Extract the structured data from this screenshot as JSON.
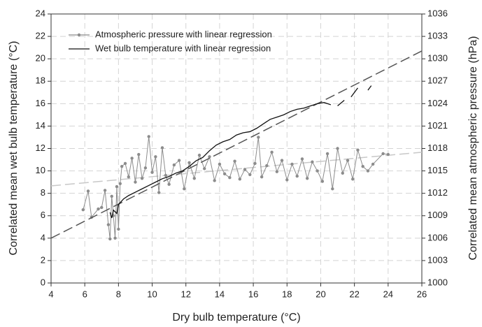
{
  "chart_data": {
    "type": "line",
    "xlabel": "Dry bulb temperature (°C)",
    "ylabel": "Correlated mean wet bulb temperature (°C)",
    "y2label": "Correlated mean atmospheric pressure (hPa)",
    "xlim": [
      4,
      26
    ],
    "xticks": [
      4,
      6,
      8,
      10,
      12,
      14,
      16,
      18,
      20,
      22,
      24,
      26
    ],
    "ylim": [
      0,
      24
    ],
    "yticks": [
      0,
      2,
      4,
      6,
      8,
      10,
      12,
      14,
      16,
      18,
      20,
      22,
      24
    ],
    "y2lim": [
      1000,
      1036
    ],
    "y2ticks": [
      1000,
      1003,
      1006,
      1009,
      1012,
      1015,
      1018,
      1021,
      1024,
      1027,
      1030,
      1033,
      1036
    ],
    "grid": true,
    "legend": "upper left",
    "series": [
      {
        "name": "Atmospheric pressure with linear regression",
        "color": "#8c8c8c",
        "axis": "y2",
        "markers": true,
        "x": [
          5.9,
          6.2,
          6.4,
          6.8,
          7.0,
          7.2,
          7.4,
          7.5,
          7.6,
          7.7,
          7.8,
          7.9,
          8.0,
          8.1,
          8.2,
          8.4,
          8.6,
          8.8,
          9.0,
          9.2,
          9.4,
          9.6,
          9.8,
          10.0,
          10.2,
          10.4,
          10.6,
          10.8,
          11.0,
          11.3,
          11.6,
          11.9,
          12.2,
          12.5,
          12.8,
          13.1,
          13.4,
          13.7,
          14.0,
          14.3,
          14.6,
          14.9,
          15.2,
          15.5,
          15.8,
          16.1,
          16.3,
          16.5,
          16.8,
          17.1,
          17.4,
          17.7,
          18.0,
          18.3,
          18.6,
          18.9,
          19.2,
          19.5,
          19.8,
          20.1,
          20.4,
          20.7,
          21.0,
          21.3,
          21.6,
          21.9,
          22.2,
          22.5,
          22.8,
          23.1,
          23.7,
          24.0
        ],
        "values": [
          1009.8,
          1012.3,
          1008.8,
          1009.9,
          1010.1,
          1012.4,
          1007.8,
          1005.9,
          1011.6,
          1009.0,
          1006.0,
          1012.9,
          1007.2,
          1013.3,
          1015.6,
          1016.0,
          1014.2,
          1016.7,
          1013.5,
          1017.2,
          1014.0,
          1015.4,
          1019.6,
          1014.8,
          1016.9,
          1012.1,
          1018.1,
          1014.4,
          1013.2,
          1015.8,
          1016.4,
          1012.6,
          1016.1,
          1014.0,
          1017.1,
          1015.3,
          1016.9,
          1013.7,
          1015.9,
          1014.6,
          1014.1,
          1016.3,
          1013.9,
          1015.2,
          1014.5,
          1016.0,
          1019.5,
          1014.2,
          1015.7,
          1017.5,
          1014.9,
          1016.4,
          1013.8,
          1015.9,
          1014.3,
          1016.6,
          1014.0,
          1016.2,
          1015.0,
          1013.6,
          1017.3,
          1012.6,
          1018.0,
          1014.7,
          1016.4,
          1013.9,
          1017.8,
          1015.6,
          1015.0,
          1015.9,
          1017.3,
          1017.2
        ],
        "trend": {
          "x": [
            4,
            26
          ],
          "values": [
            1013.0,
            1017.5
          ],
          "color": "#c8c8c8"
        }
      },
      {
        "name": "Wet bulb temperature with linear regression",
        "color": "#111111",
        "axis": "y",
        "markers": false,
        "x": [
          7.5,
          7.6,
          7.7,
          7.9,
          8.0,
          8.3,
          8.6,
          9.0,
          9.4,
          9.8,
          10.2,
          10.6,
          11.0,
          11.4,
          11.8,
          12.2,
          12.6,
          13.0,
          13.4,
          13.8,
          14.2,
          14.6,
          15.0,
          15.4,
          15.8,
          16.2,
          16.6,
          17.0,
          17.4,
          17.8,
          18.2,
          18.6,
          19.0,
          19.4,
          19.8,
          20.2,
          20.6,
          20.8,
          21.0,
          21.4,
          21.6,
          21.8,
          22.2,
          22.5,
          22.8,
          23.0
        ],
        "values": [
          6.3,
          5.8,
          6.5,
          6.2,
          7.0,
          7.5,
          7.8,
          8.1,
          8.4,
          8.7,
          9.0,
          9.3,
          9.5,
          9.8,
          10.0,
          10.4,
          10.9,
          11.2,
          11.8,
          12.3,
          12.6,
          12.8,
          13.2,
          13.4,
          13.5,
          13.8,
          14.2,
          14.6,
          14.8,
          15.0,
          15.3,
          15.5,
          15.6,
          15.8,
          16.0,
          16.1,
          15.9,
          null,
          15.8,
          16.3,
          null,
          16.6,
          17.4,
          null,
          17.2,
          17.6
        ],
        "trend": {
          "x": [
            4,
            26
          ],
          "values": [
            4.0,
            20.7
          ],
          "color": "#555555"
        }
      }
    ]
  }
}
